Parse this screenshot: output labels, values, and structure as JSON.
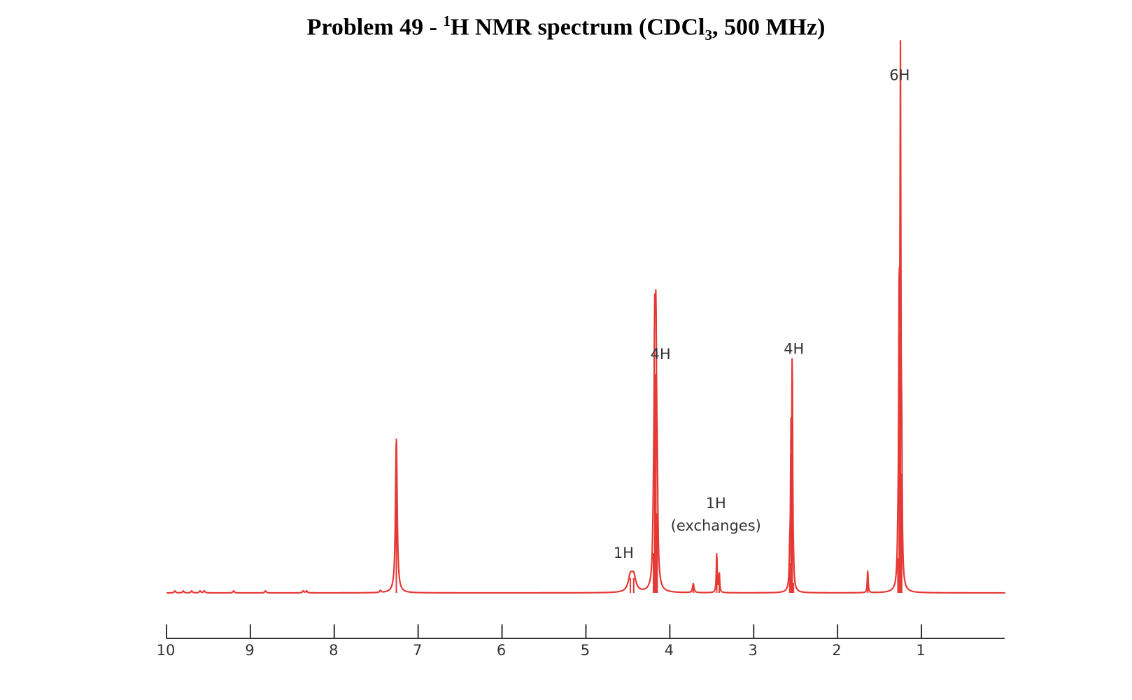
{
  "title": {
    "prefix": "Problem 49 - ",
    "superscript": "1",
    "main": "H NMR spectrum (CDCl",
    "subscript": "3",
    "suffix": ", 500 MHz)"
  },
  "chart_data": {
    "type": "line",
    "xlim": [
      10,
      0
    ],
    "ylim": [
      0,
      1
    ],
    "x_ticks": [
      10,
      9,
      8,
      7,
      6,
      5,
      4,
      3,
      2,
      1
    ],
    "x_tick_labels": [
      "10",
      "9",
      "8",
      "7",
      "6",
      "5",
      "4",
      "3",
      "2",
      "1"
    ],
    "grid": false,
    "line_color": "#e53935",
    "peaks": [
      {
        "ppm": 7.26,
        "height": 0.31,
        "width": 0.012
      },
      {
        "ppm": 4.47,
        "height": 0.03,
        "width": 0.03
      },
      {
        "ppm": 4.43,
        "height": 0.03,
        "width": 0.03
      },
      {
        "ppm": 4.195,
        "height": 0.08,
        "width": 0.01
      },
      {
        "ppm": 4.18,
        "height": 0.44,
        "width": 0.009
      },
      {
        "ppm": 4.165,
        "height": 0.44,
        "width": 0.009
      },
      {
        "ppm": 4.15,
        "height": 0.16,
        "width": 0.009
      },
      {
        "ppm": 3.72,
        "height": 0.018,
        "width": 0.01
      },
      {
        "ppm": 3.44,
        "height": 0.08,
        "width": 0.006
      },
      {
        "ppm": 3.41,
        "height": 0.04,
        "width": 0.006
      },
      {
        "ppm": 2.57,
        "height": 0.06,
        "width": 0.006
      },
      {
        "ppm": 2.555,
        "height": 0.28,
        "width": 0.006
      },
      {
        "ppm": 2.54,
        "height": 0.45,
        "width": 0.006
      },
      {
        "ppm": 2.525,
        "height": 0.02,
        "width": 0.006
      },
      {
        "ppm": 1.64,
        "height": 0.045,
        "width": 0.006
      },
      {
        "ppm": 1.28,
        "height": 0.07,
        "width": 0.008
      },
      {
        "ppm": 1.265,
        "height": 0.52,
        "width": 0.006
      },
      {
        "ppm": 1.25,
        "height": 1.0,
        "width": 0.006
      },
      {
        "ppm": 1.235,
        "height": 0.24,
        "width": 0.006
      }
    ],
    "noise": [
      9.9,
      9.8,
      9.7,
      9.6,
      9.55,
      9.2,
      8.82,
      8.37,
      8.33,
      7.45
    ],
    "annotations": [
      {
        "text": "6H",
        "ppm": 1.26,
        "level": 1.03
      },
      {
        "text": "4H",
        "ppm": 4.11,
        "level": 0.47
      },
      {
        "text": "4H",
        "ppm": 2.52,
        "level": 0.48
      },
      {
        "text": "1H",
        "ppm": 3.45,
        "level": 0.17
      },
      {
        "text": "(exchanges)",
        "ppm": 3.45,
        "level": 0.125
      },
      {
        "text": "1H",
        "ppm": 4.55,
        "level": 0.07
      }
    ]
  }
}
